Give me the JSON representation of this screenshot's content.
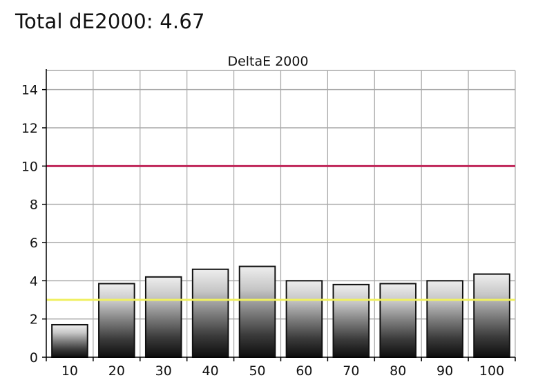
{
  "page": {
    "title": "Total dE2000: 4.67"
  },
  "chart_data": {
    "type": "bar",
    "title": "DeltaE 2000",
    "xlabel": "",
    "ylabel": "",
    "categories": [
      "10",
      "20",
      "30",
      "40",
      "50",
      "60",
      "70",
      "80",
      "90",
      "100"
    ],
    "values": [
      1.7,
      3.85,
      4.2,
      4.6,
      4.75,
      4.0,
      3.8,
      3.85,
      4.0,
      4.35
    ],
    "ylim": [
      0,
      15
    ],
    "yticks": [
      0,
      2,
      4,
      6,
      8,
      10,
      12,
      14
    ],
    "grid": true,
    "reference_lines": [
      {
        "value": 10,
        "color": "#c0285a"
      },
      {
        "value": 3,
        "color": "#f0f060"
      }
    ],
    "colors": {
      "bar_outline": "#111111",
      "grid": "#a9a9a9",
      "axis": "#000000"
    }
  }
}
